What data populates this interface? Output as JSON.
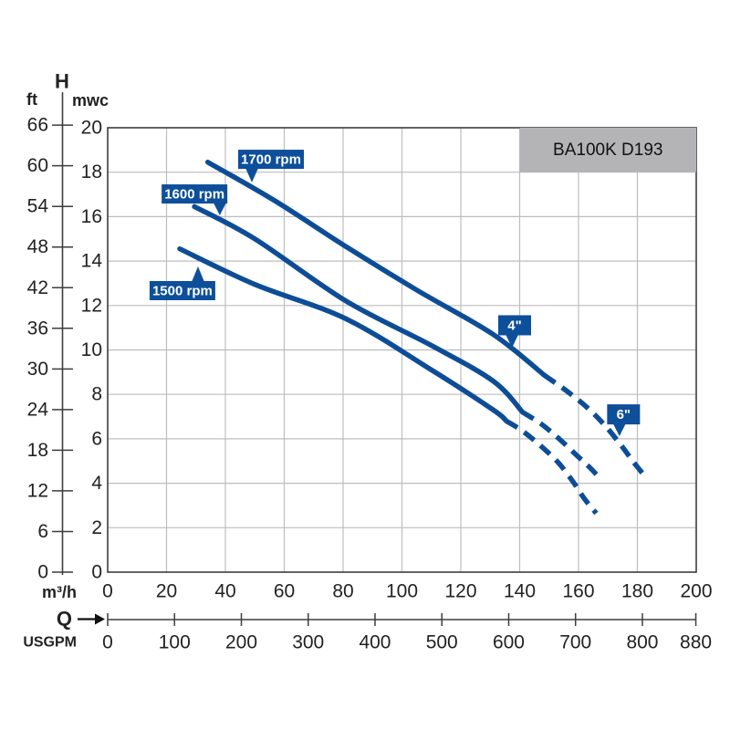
{
  "window": {
    "background": "#ffffff"
  },
  "chart_data": {
    "type": "line",
    "title": "BA100K D193",
    "title_box": {
      "fill": "#b4b4b6",
      "text_color": "#111111",
      "q_range": [
        140,
        200
      ],
      "h_range": [
        18,
        20
      ]
    },
    "colors": {
      "curve": "#0d4d97",
      "label_bg": "#0d4f9a",
      "label_text": "#ffffff",
      "grid": "#bdbdbd",
      "axis": "#3d3d3d",
      "tick_text": "#222222"
    },
    "grid": true,
    "legend_position": "none",
    "y_axis": {
      "title": "H",
      "primary": {
        "label": "mwc",
        "ticks": [
          0,
          2,
          4,
          6,
          8,
          10,
          12,
          14,
          16,
          18,
          20
        ],
        "range": [
          0,
          20
        ]
      },
      "secondary": {
        "label": "ft",
        "ticks": [
          0,
          6,
          12,
          18,
          24,
          30,
          36,
          42,
          48,
          54,
          60,
          66
        ],
        "mwc_per_ft": 0.3048
      }
    },
    "x_axis": {
      "symbol": "Q",
      "primary": {
        "label": "m³/h",
        "ticks": [
          0,
          20,
          40,
          60,
          80,
          100,
          120,
          140,
          160,
          180,
          200
        ],
        "range": [
          0,
          200
        ]
      },
      "secondary": {
        "label": "USGPM",
        "ticks": [
          0,
          100,
          200,
          300,
          400,
          500,
          600,
          700,
          800,
          880
        ],
        "m3h_per_usgpm": 0.22712
      }
    },
    "series": [
      {
        "name": "1700 rpm",
        "solid": [
          [
            34,
            18.45
          ],
          [
            57,
            16.7
          ],
          [
            81,
            14.65
          ],
          [
            105,
            12.7
          ],
          [
            131,
            10.7
          ],
          [
            148.5,
            8.85
          ]
        ],
        "dashed": [
          [
            148.5,
            8.85
          ],
          [
            156,
            8.15
          ],
          [
            163,
            7.4
          ],
          [
            169,
            6.6
          ],
          [
            174.5,
            5.7
          ],
          [
            179,
            4.9
          ],
          [
            183,
            4.25
          ]
        ]
      },
      {
        "name": "1600 rpm",
        "solid": [
          [
            29.5,
            16.45
          ],
          [
            50,
            15.0
          ],
          [
            81,
            12.2
          ],
          [
            110,
            10.2
          ],
          [
            131,
            8.6
          ],
          [
            141,
            7.2
          ]
        ],
        "dashed": [
          [
            141,
            7.2
          ],
          [
            147,
            6.7
          ],
          [
            153,
            6.05
          ],
          [
            159,
            5.3
          ],
          [
            163.5,
            4.75
          ],
          [
            167.5,
            4.2
          ]
        ]
      },
      {
        "name": "1500 rpm",
        "solid": [
          [
            24.5,
            14.55
          ],
          [
            50,
            12.95
          ],
          [
            81,
            11.4
          ],
          [
            110,
            9.1
          ],
          [
            131,
            7.3
          ],
          [
            135.5,
            6.8
          ]
        ],
        "dashed": [
          [
            135.5,
            6.8
          ],
          [
            141,
            6.35
          ],
          [
            147,
            5.7
          ],
          [
            153,
            4.95
          ],
          [
            158,
            4.1
          ],
          [
            162,
            3.3
          ],
          [
            166,
            2.65
          ]
        ]
      }
    ],
    "annotations": [
      {
        "text": "1700 rpm",
        "kind": "rpm",
        "q": 55.5,
        "h": 18.58,
        "tip_q": 49.0,
        "tip_h": 17.54
      },
      {
        "text": "1600 rpm",
        "kind": "rpm",
        "q": 29.5,
        "h": 17.02,
        "tip_q": 38.1,
        "tip_h": 16.06
      },
      {
        "text": "1500 rpm",
        "kind": "rpm",
        "q": 25.4,
        "h": 12.67,
        "tip_q": 30.7,
        "tip_h": 13.76
      },
      {
        "text": "4\"",
        "kind": "size",
        "q": 138.3,
        "h": 11.11,
        "tip_q": 137.4,
        "tip_h": 10.1
      },
      {
        "text": "6\"",
        "kind": "size",
        "q": 175.3,
        "h": 7.1,
        "tip_q": 173.9,
        "tip_h": 6.12
      }
    ]
  }
}
